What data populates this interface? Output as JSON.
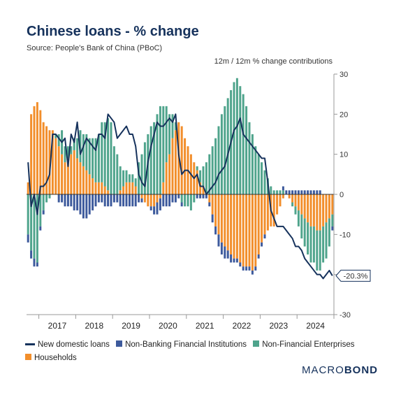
{
  "title": "Chinese loans - % change",
  "source": "Source: People's Bank of China (PBoC)",
  "subtitle": "12m / 12m % change contributions",
  "brand": {
    "text_a": "MACRO",
    "text_b": "BOND"
  },
  "last_value_label": "-20.3%",
  "chart_data": {
    "type": "bar",
    "stacked": true,
    "x_start": "2016-09",
    "frequency": "monthly",
    "x_tick_labels": [
      "2017",
      "2018",
      "2019",
      "2020",
      "2021",
      "2022",
      "2023",
      "2024"
    ],
    "ylim": [
      -30,
      30
    ],
    "y_ticks": [
      30,
      20,
      10,
      0,
      -10,
      -20,
      -30
    ],
    "y_axis_side": "right",
    "legend_position": "bottom",
    "series": [
      {
        "name": "Households",
        "color": "#f28e2b",
        "kind": "bar",
        "values": [
          3,
          20,
          22,
          23,
          21,
          18,
          17,
          16,
          16,
          14,
          12,
          10,
          8,
          9,
          10,
          11,
          9,
          8,
          7,
          6,
          5,
          4,
          3,
          3,
          3,
          2,
          1,
          0,
          0,
          0,
          1,
          2,
          3,
          3,
          3,
          2,
          0,
          -1,
          -2,
          -3,
          -3,
          -3,
          -2,
          -1,
          3,
          8,
          10,
          14,
          16,
          18,
          17,
          14,
          12,
          10,
          8,
          6,
          3,
          2,
          0,
          -2,
          -5,
          -8,
          -10,
          -12,
          -13,
          -14,
          -15,
          -16,
          -16,
          -17,
          -18,
          -18,
          -18,
          -19,
          -18,
          -15,
          -12,
          -10,
          -9,
          -8,
          -8,
          -5,
          -3,
          -1,
          0,
          -1,
          -2,
          -3,
          -4,
          -5,
          -6,
          -7,
          -8,
          -8,
          -9,
          -9,
          -8,
          -7,
          -6,
          -5
        ]
      },
      {
        "name": "Non-Financial Enterprises",
        "color": "#4fa48c",
        "kind": "bar",
        "values": [
          -10,
          -14,
          -16,
          -17,
          -8,
          -4,
          -2,
          -1,
          0,
          1,
          3,
          6,
          4,
          3,
          2,
          3,
          5,
          8,
          8,
          9,
          9,
          10,
          11,
          12,
          15,
          16,
          18,
          18,
          12,
          10,
          6,
          4,
          3,
          2,
          2,
          2,
          8,
          10,
          13,
          15,
          17,
          18,
          20,
          22,
          19,
          14,
          10,
          6,
          2,
          0,
          -2,
          -3,
          -3,
          -4,
          -2,
          1,
          3,
          5,
          8,
          10,
          12,
          14,
          17,
          20,
          22,
          24,
          26,
          28,
          29,
          27,
          25,
          22,
          18,
          15,
          12,
          10,
          8,
          6,
          4,
          2,
          1,
          1,
          1,
          1,
          0,
          0,
          -1,
          -2,
          -4,
          -6,
          -7,
          -8,
          -9,
          -9,
          -10,
          -10,
          -9,
          -9,
          -7,
          -3
        ]
      },
      {
        "name": "Non-Banking Financial Institutions",
        "color": "#3d5a9c",
        "kind": "bar",
        "values": [
          -2,
          -2,
          -2,
          -1,
          -1,
          -1,
          0,
          0,
          0,
          0,
          -2,
          -2,
          -3,
          -3,
          -3,
          -4,
          -4,
          -5,
          -6,
          -6,
          -5,
          -4,
          -3,
          -2,
          -2,
          -3,
          -3,
          -3,
          -2,
          -2,
          -3,
          -3,
          -3,
          -3,
          -3,
          -3,
          -2,
          -1,
          0,
          0,
          -1,
          -2,
          -3,
          -3,
          -3,
          -3,
          -3,
          -2,
          -2,
          -1,
          -1,
          0,
          0,
          0,
          0,
          -1,
          -1,
          -1,
          -1,
          -1,
          -2,
          -2,
          -3,
          -3,
          -3,
          -2,
          -2,
          -1,
          -1,
          -1,
          -1,
          -1,
          -1,
          -1,
          -1,
          -1,
          -1,
          -1,
          0,
          0,
          0,
          0,
          0,
          1,
          1,
          1,
          1,
          1,
          1,
          1,
          1,
          1,
          1,
          1,
          1,
          1,
          0,
          0,
          0,
          -1
        ]
      },
      {
        "name": "New domestic loans",
        "color": "#16325c",
        "kind": "line",
        "values": [
          8,
          -3,
          0,
          -5,
          2,
          2,
          3,
          5,
          15,
          15,
          14,
          13,
          14,
          7,
          15,
          13,
          18,
          10,
          12,
          14,
          13,
          12,
          11,
          15,
          15,
          14,
          20,
          19,
          18,
          14,
          15,
          16,
          17,
          15,
          15,
          12,
          5,
          3,
          2,
          8,
          12,
          15,
          18,
          17,
          17,
          18,
          19,
          18,
          20,
          10,
          5,
          6,
          6,
          5,
          4,
          5,
          2,
          2,
          0,
          1,
          2,
          3,
          5,
          6,
          7,
          10,
          13,
          16,
          17,
          19,
          15,
          14,
          13,
          12,
          11,
          10,
          9,
          9,
          3,
          -4,
          -6,
          -8,
          -8,
          -8,
          -9,
          -10,
          -11,
          -13,
          -13,
          -14,
          -16,
          -17,
          -18,
          -19,
          -20,
          -20,
          -21,
          -20,
          -19,
          -20.3
        ]
      }
    ]
  }
}
